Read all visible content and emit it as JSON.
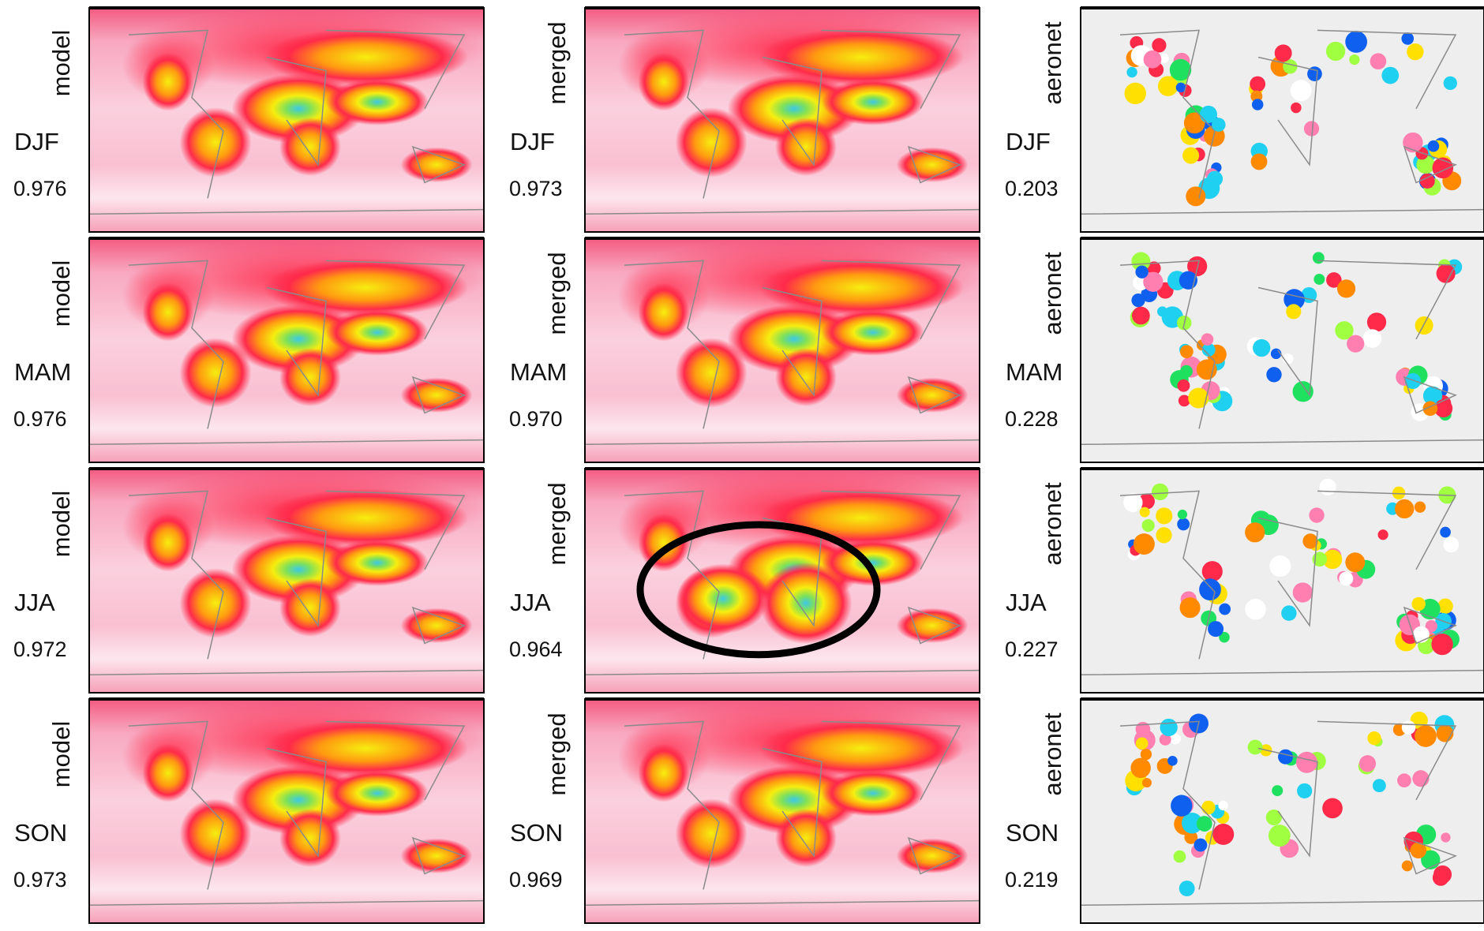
{
  "columns": [
    "model",
    "merged",
    "aeronet"
  ],
  "rows": [
    {
      "season": "DJF",
      "values": [
        "0.976",
        "0.973",
        "0.203"
      ]
    },
    {
      "season": "MAM",
      "values": [
        "0.976",
        "0.970",
        "0.228"
      ]
    },
    {
      "season": "JJA",
      "values": [
        "0.972",
        "0.964",
        "0.227"
      ]
    },
    {
      "season": "SON",
      "values": [
        "0.973",
        "0.969",
        "0.219"
      ]
    }
  ]
}
